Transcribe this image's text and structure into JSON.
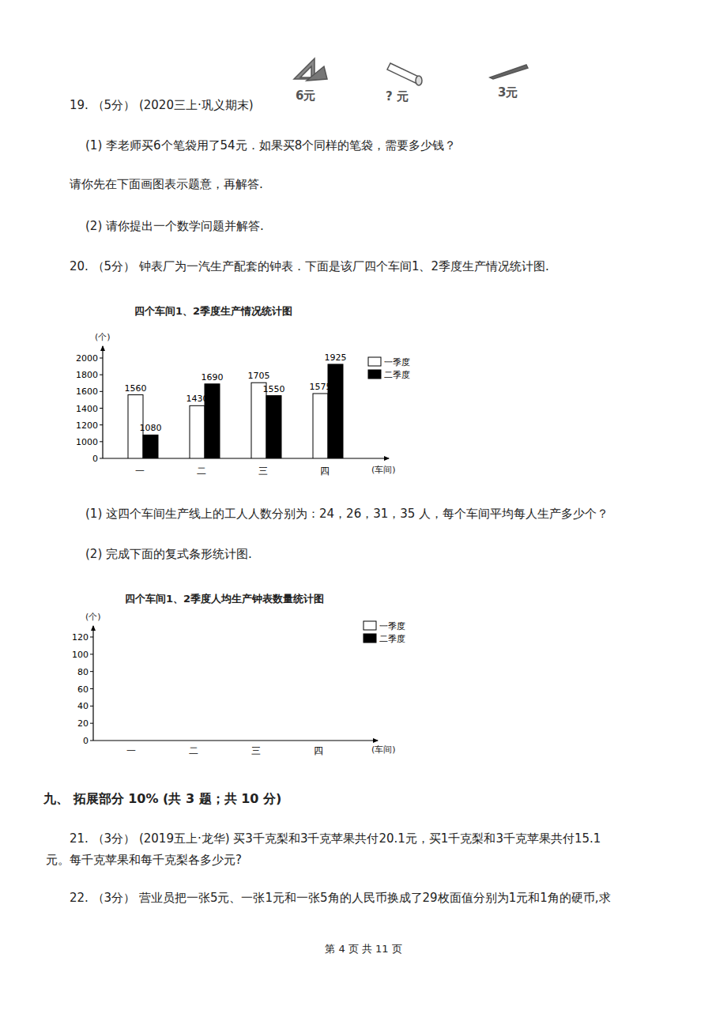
{
  "prices": [
    "6元",
    "? 元",
    "3元"
  ],
  "q19": {
    "header": "19. （5分） (2020三上·巩义期末)",
    "part1": "(1)  李老师买6个笔袋用了54元．如果买8个同样的笔袋，需要多少钱？",
    "instruction": "请你先在下面画图表示题意，再解答.",
    "part2": "(2)  请你提出一个数学问题并解答."
  },
  "q20": {
    "header": "20. （5分） 钟表厂为一汽生产配套的钟表．下面是该厂四个车间1、2季度生产情况统计图.",
    "part1": "(1)  这四个车间生产线上的工人人数分别为：24，26，31，35 人，每个车间平均每人生产多少个？",
    "part2": "(2)  完成下面的复式条形统计图."
  },
  "section": "九、 拓展部分 10% (共 3 题；共 10 分)",
  "q21": {
    "line1": "21. （3分） (2019五上·龙华) 买3千克梨和3千克苹果共付20.1元，买1千克梨和3千克苹果共付15.1",
    "line2": "元。每千克苹果和每千克梨各多少元?"
  },
  "q22": {
    "line1": "22. （3分） 营业员把一张5元、一张1元和一张5角的人民币换成了29枚面值分别为1元和1角的硬币,求"
  },
  "footer": "第 4 页 共 11 页",
  "chart_data": [
    {
      "type": "bar",
      "title": "四个车间1、2季度生产情况统计图",
      "y_label": "(个)",
      "x_label": "(车间)",
      "categories": [
        "一",
        "二",
        "三",
        "四"
      ],
      "series": [
        {
          "name": "一季度",
          "color": "#ffffff",
          "values": [
            1560,
            1430,
            1705,
            1575
          ]
        },
        {
          "name": "二季度",
          "color": "#000000",
          "values": [
            1080,
            1690,
            1550,
            1925
          ]
        }
      ],
      "ylim": [
        0,
        2000
      ],
      "yticks": [
        0,
        1000,
        1200,
        1400,
        1600,
        1800,
        2000
      ],
      "data_labels": true,
      "legend": "upper right"
    },
    {
      "type": "bar",
      "title": "四个车间1、2季度人均生产钟表数量统计图",
      "y_label": "(个)",
      "x_label": "(车间)",
      "categories": [
        "一",
        "二",
        "三",
        "四"
      ],
      "series": [
        {
          "name": "一季度",
          "color": "#ffffff",
          "values": [
            null,
            null,
            null,
            null
          ]
        },
        {
          "name": "二季度",
          "color": "#000000",
          "values": [
            null,
            null,
            null,
            null
          ]
        }
      ],
      "ylim": [
        0,
        120
      ],
      "yticks": [
        0,
        20,
        40,
        60,
        80,
        100,
        120
      ],
      "data_labels": false,
      "legend": "upper right"
    }
  ]
}
